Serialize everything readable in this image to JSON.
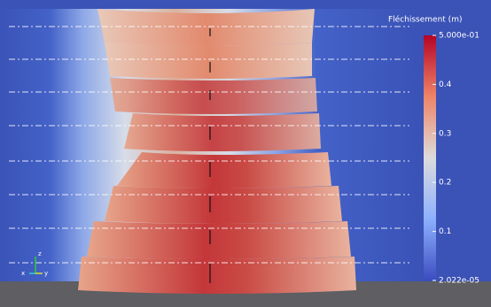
{
  "colorbar": {
    "title": "Fléchissement (m)",
    "range": [
      2.022e-05,
      0.5
    ],
    "ticks": [
      {
        "value": 0.5,
        "label": "5.000e-01"
      },
      0.4,
      0.3,
      0.2,
      0.1,
      {
        "value": 2.022e-05,
        "label": "2.022e-05"
      }
    ]
  },
  "axes_triad": {
    "labels": [
      "x",
      "y",
      "z"
    ]
  }
}
